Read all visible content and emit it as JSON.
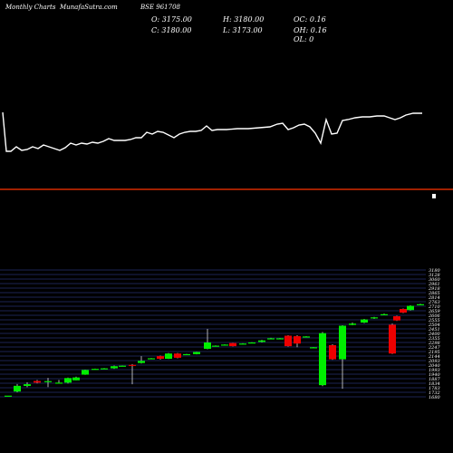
{
  "header": {
    "brand": "Monthly Charts",
    "site": "MunafaSutra.com",
    "symbol": "BSE 961708",
    "open": "O: 3175.00",
    "high": "H: 3180.00",
    "oc": "OC: 0.16",
    "close": "C: 3180.00",
    "low": "L: 3173.00",
    "oh": "OH: 0.16",
    "ol": "OL: 0"
  },
  "colors": {
    "background": "#000000",
    "up": "#00ee00",
    "down": "#ee0000",
    "line": "#ffffff",
    "grid": "#3a4aa8",
    "separator": "#ff3300"
  },
  "chart_data": [
    {
      "type": "line",
      "title": "",
      "points": [
        [
          3,
          124
        ],
        [
          7,
          167
        ],
        [
          12,
          167
        ],
        [
          18,
          162
        ],
        [
          24,
          166
        ],
        [
          30,
          165
        ],
        [
          36,
          162
        ],
        [
          42,
          164
        ],
        [
          48,
          160
        ],
        [
          54,
          162
        ],
        [
          60,
          164
        ],
        [
          66,
          166
        ],
        [
          72,
          163
        ],
        [
          78,
          158
        ],
        [
          84,
          160
        ],
        [
          90,
          158
        ],
        [
          96,
          159
        ],
        [
          102,
          157
        ],
        [
          108,
          158
        ],
        [
          114,
          156
        ],
        [
          120,
          153
        ],
        [
          126,
          155
        ],
        [
          132,
          155
        ],
        [
          138,
          155
        ],
        [
          144,
          154
        ],
        [
          150,
          152
        ],
        [
          156,
          152
        ],
        [
          162,
          146
        ],
        [
          168,
          148
        ],
        [
          174,
          145
        ],
        [
          180,
          146
        ],
        [
          186,
          149
        ],
        [
          192,
          152
        ],
        [
          198,
          148
        ],
        [
          204,
          146
        ],
        [
          210,
          145
        ],
        [
          216,
          145
        ],
        [
          222,
          144
        ],
        [
          228,
          139
        ],
        [
          234,
          144
        ],
        [
          240,
          143
        ],
        [
          250,
          143
        ],
        [
          262,
          142
        ],
        [
          274,
          142
        ],
        [
          286,
          141
        ],
        [
          298,
          140
        ],
        [
          306,
          137
        ],
        [
          312,
          136
        ],
        [
          318,
          143
        ],
        [
          324,
          141
        ],
        [
          330,
          138
        ],
        [
          336,
          137
        ],
        [
          342,
          140
        ],
        [
          348,
          147
        ],
        [
          354,
          158
        ],
        [
          360,
          132
        ],
        [
          366,
          148
        ],
        [
          372,
          147
        ],
        [
          378,
          133
        ],
        [
          384,
          132
        ],
        [
          392,
          130
        ],
        [
          400,
          129
        ],
        [
          408,
          129
        ],
        [
          416,
          128
        ],
        [
          424,
          128
        ],
        [
          430,
          130
        ],
        [
          436,
          132
        ],
        [
          442,
          130
        ],
        [
          448,
          127
        ],
        [
          456,
          125
        ],
        [
          466,
          125
        ]
      ]
    },
    {
      "type": "candlestick",
      "title": "",
      "y_ticks": [
        "3180",
        "3128",
        "3060",
        "2961",
        "2918",
        "2865",
        "2814",
        "2763",
        "2710",
        "2659",
        "2606",
        "2555",
        "2504",
        "2451",
        "2400",
        "2355",
        "2298",
        "2247",
        "2195",
        "2144",
        "2093",
        "2040",
        "1993",
        "1940",
        "1887",
        "1834",
        "1783",
        "1732",
        "1680"
      ],
      "candles": [
        {
          "x": 9,
          "open": 1694,
          "close": 1694,
          "high": 1694,
          "low": 1694
        },
        {
          "x": 19,
          "open": 1743,
          "close": 1810,
          "high": 1832,
          "low": 1734
        },
        {
          "x": 30,
          "open": 1809,
          "close": 1829,
          "high": 1851,
          "low": 1794
        },
        {
          "x": 41,
          "open": 1867,
          "close": 1848,
          "high": 1879,
          "low": 1840
        },
        {
          "x": 53,
          "open": 1860,
          "close": 1866,
          "high": 1903,
          "low": 1795
        },
        {
          "x": 65,
          "open": 1848,
          "close": 1848,
          "high": 1880,
          "low": 1845
        },
        {
          "x": 75,
          "open": 1848,
          "close": 1902,
          "high": 1908,
          "low": 1838
        },
        {
          "x": 84,
          "open": 1875,
          "close": 1909,
          "high": 1918,
          "low": 1875
        },
        {
          "x": 94,
          "open": 1942,
          "close": 1998,
          "high": 2002,
          "low": 1940
        },
        {
          "x": 105,
          "open": 2005,
          "close": 2011,
          "high": 2014,
          "low": 2002
        },
        {
          "x": 115,
          "open": 2011,
          "close": 2017,
          "high": 2020,
          "low": 2008
        },
        {
          "x": 126,
          "open": 2017,
          "close": 2042,
          "high": 2050,
          "low": 2011
        },
        {
          "x": 135,
          "open": 2042,
          "close": 2048,
          "high": 2050,
          "low": 2039
        },
        {
          "x": 146,
          "open": 2058,
          "close": 2052,
          "high": 2067,
          "low": 1829
        },
        {
          "x": 156,
          "open": 2080,
          "close": 2105,
          "high": 2161,
          "low": 2074
        },
        {
          "x": 167,
          "open": 2130,
          "close": 2136,
          "high": 2139,
          "low": 2127
        },
        {
          "x": 177,
          "open": 2161,
          "close": 2130,
          "high": 2167,
          "low": 2121
        },
        {
          "x": 186,
          "open": 2130,
          "close": 2192,
          "high": 2198,
          "low": 2127
        },
        {
          "x": 196,
          "open": 2192,
          "close": 2142,
          "high": 2198,
          "low": 2136
        },
        {
          "x": 206,
          "open": 2182,
          "close": 2185,
          "high": 2188,
          "low": 2179
        },
        {
          "x": 217,
          "open": 2185,
          "close": 2210,
          "high": 2213,
          "low": 2182
        },
        {
          "x": 229,
          "open": 2248,
          "close": 2323,
          "high": 2484,
          "low": 2242
        },
        {
          "x": 238,
          "open": 2285,
          "close": 2285,
          "high": 2288,
          "low": 2282
        },
        {
          "x": 248,
          "open": 2294,
          "close": 2298,
          "high": 2301,
          "low": 2291
        },
        {
          "x": 257,
          "open": 2316,
          "close": 2279,
          "high": 2319,
          "low": 2276
        },
        {
          "x": 268,
          "open": 2307,
          "close": 2310,
          "high": 2313,
          "low": 2304
        },
        {
          "x": 278,
          "open": 2319,
          "close": 2323,
          "high": 2326,
          "low": 2316
        },
        {
          "x": 289,
          "open": 2329,
          "close": 2347,
          "high": 2354,
          "low": 2323
        },
        {
          "x": 299,
          "open": 2366,
          "close": 2372,
          "high": 2378,
          "low": 2360
        },
        {
          "x": 309,
          "open": 2372,
          "close": 2372,
          "high": 2375,
          "low": 2369
        },
        {
          "x": 318,
          "open": 2403,
          "close": 2279,
          "high": 2409,
          "low": 2273
        },
        {
          "x": 328,
          "open": 2397,
          "close": 2310,
          "high": 2409,
          "low": 2267
        },
        {
          "x": 338,
          "open": 2394,
          "close": 2394,
          "high": 2397,
          "low": 2391
        },
        {
          "x": 346,
          "open": 2266,
          "close": 2266,
          "high": 2268,
          "low": 2263
        },
        {
          "x": 356,
          "open": 1818,
          "close": 2433,
          "high": 2446,
          "low": 1806
        },
        {
          "x": 367,
          "open": 2291,
          "close": 2124,
          "high": 2301,
          "low": 2118
        },
        {
          "x": 378,
          "open": 2124,
          "close": 2521,
          "high": 2527,
          "low": 1775
        },
        {
          "x": 389,
          "open": 2530,
          "close": 2546,
          "high": 2558,
          "low": 2527
        },
        {
          "x": 402,
          "open": 2558,
          "close": 2595,
          "high": 2602,
          "low": 2552
        },
        {
          "x": 413,
          "open": 2608,
          "close": 2620,
          "high": 2626,
          "low": 2602
        },
        {
          "x": 424,
          "open": 2651,
          "close": 2657,
          "high": 2664,
          "low": 2645
        },
        {
          "x": 433,
          "open": 2533,
          "close": 2192,
          "high": 2546,
          "low": 2186
        },
        {
          "x": 438,
          "open": 2633,
          "close": 2583,
          "high": 2639,
          "low": 2577
        },
        {
          "x": 445,
          "open": 2719,
          "close": 2676,
          "high": 2725,
          "low": 2670
        },
        {
          "x": 453,
          "open": 2706,
          "close": 2756,
          "high": 2762,
          "low": 2700
        },
        {
          "x": 464,
          "open": 2768,
          "close": 2775,
          "high": 2781,
          "low": 2762
        }
      ]
    }
  ]
}
